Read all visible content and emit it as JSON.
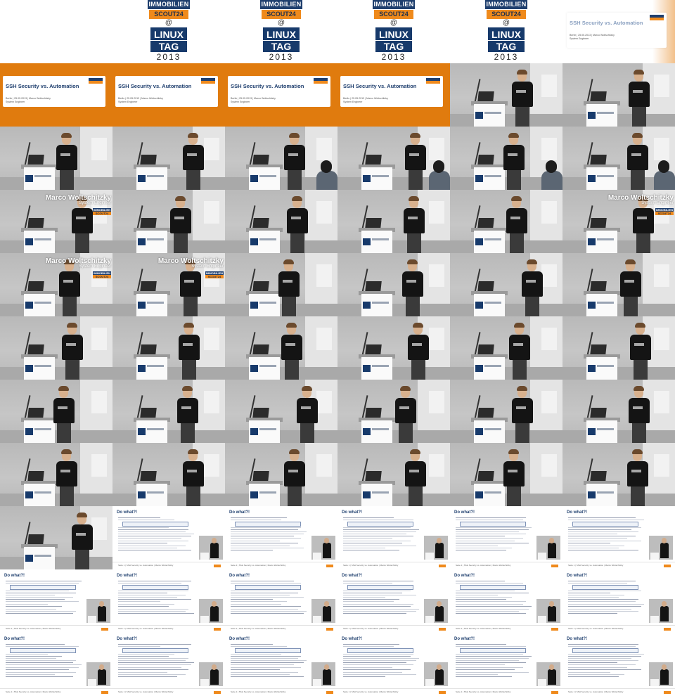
{
  "sheet": {
    "columns": 6,
    "rows": 11
  },
  "logo": {
    "immo": "IMMOBILIEN",
    "scout": "SCOUT24",
    "at": "@",
    "linux": "LINUX",
    "tag": "TAG",
    "year": "2013"
  },
  "title_slide": {
    "title": "SSH Security vs. Automation",
    "meta": "Berlin | 25.05.2013 | Marco Woltschitzky",
    "role": "System Engineer"
  },
  "lower_third": {
    "name": "Marco Woltschitzky",
    "role": "System Engineer",
    "logo_top": "IMMOBILIEN",
    "logo_bottom": "SCOUT24"
  },
  "code_slide": {
    "title": "Do what?!",
    "footer": "Seite 1 | SSH Security vs. Automation | Marco Woltschitzky"
  },
  "tiles": [
    "blank",
    "logo",
    "logo",
    "logo",
    "logo",
    "title-fade",
    "title",
    "title",
    "title",
    "title",
    "stage",
    "stage",
    "stage",
    "stage",
    "stage",
    "stage",
    "stage",
    "stage",
    "stage-lower",
    "stage",
    "stage",
    "stage",
    "stage",
    "stage-lower",
    "stage-lower",
    "stage-lower",
    "stage",
    "stage",
    "stage",
    "stage",
    "stage",
    "stage",
    "stage",
    "stage",
    "stage",
    "stage",
    "stage",
    "stage",
    "stage",
    "stage",
    "stage",
    "stage",
    "stage",
    "stage",
    "stage",
    "stage",
    "stage",
    "stage",
    "stage",
    "code",
    "code",
    "code",
    "code",
    "code",
    "code",
    "code",
    "code",
    "code",
    "code",
    "code",
    "code",
    "code",
    "code",
    "code",
    "code",
    "code"
  ]
}
